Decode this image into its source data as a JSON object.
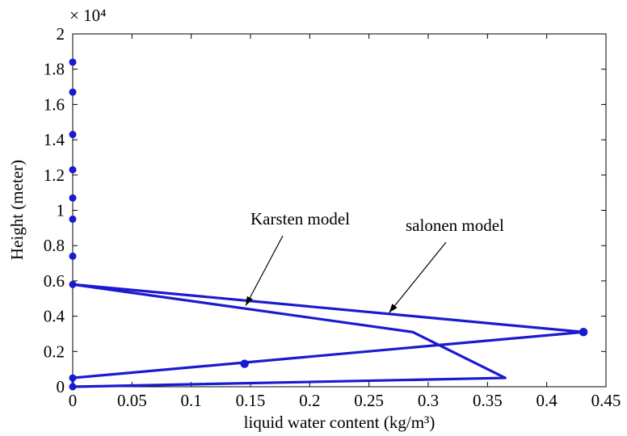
{
  "chart_data": {
    "type": "line",
    "title": "",
    "xlabel": "liquid water content (kg/m³)",
    "ylabel": "Height (meter)",
    "y_multiplier": "× 10⁴",
    "xlim": [
      0,
      0.45
    ],
    "ylim": [
      0,
      20000
    ],
    "x_ticks": [
      "0",
      "0.05",
      "0.1",
      "0.15",
      "0.2",
      "0.25",
      "0.3",
      "0.35",
      "0.4",
      "0.45"
    ],
    "y_ticks": [
      "0",
      "0.2",
      "0.4",
      "0.6",
      "0.8",
      "1",
      "1.2",
      "1.4",
      "1.6",
      "1.8",
      "2"
    ],
    "grid": false,
    "line_color": "#1a1ad0",
    "series": [
      {
        "points": [
          [
            0,
            0
          ],
          [
            0.365,
            500
          ],
          [
            0.287,
            3100
          ],
          [
            0,
            5800
          ]
        ],
        "markers": false
      },
      {
        "points": [
          [
            0,
            0
          ],
          [
            0,
            500
          ],
          [
            0.431,
            3100
          ],
          [
            0,
            5800
          ]
        ],
        "markers": [
          [
            0.145,
            1300
          ],
          [
            0.431,
            3100
          ]
        ]
      }
    ],
    "axis_markers": [
      0,
      500,
      5800,
      7400,
      9500,
      10700,
      12300,
      14300,
      16700,
      18400
    ],
    "annotations": [
      {
        "text": "Karsten model",
        "arrow_to": [
          0.146,
          4600
        ]
      },
      {
        "text": "salonen model",
        "arrow_to": [
          0.267,
          4200
        ]
      }
    ]
  }
}
